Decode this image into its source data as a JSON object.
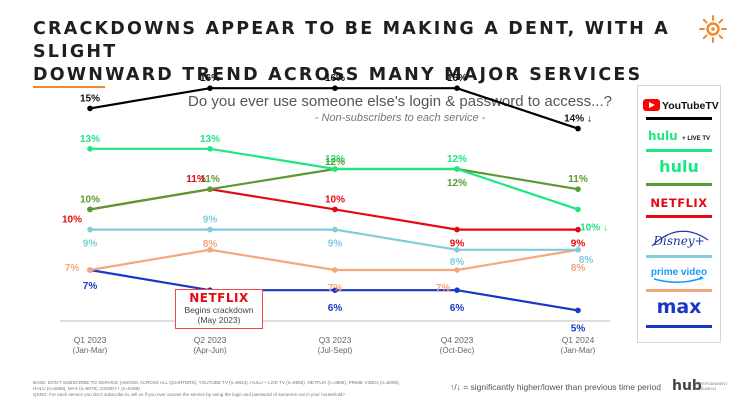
{
  "headline": {
    "line1": "CRACKDOWNS APPEAR TO BE MAKING A DENT, WITH A SLIGHT",
    "line2_part1": "DOWN",
    "line2_part2": "WARD TREND ACROSS MANY MAJOR SERVICES"
  },
  "colors": {
    "accent": "#f0892a",
    "youtubetv": "#000000",
    "hulu_live": "#1ce783",
    "hulu": "#5a9a32",
    "netflix": "#e50914",
    "disney": "#7fcdd8",
    "prime": "#f4a77a",
    "max": "#1a36c4"
  },
  "chart_data": {
    "type": "line",
    "title": "Do you ever use someone else's login & password to access...?",
    "subtitle": "- Non-subscribers to each service -",
    "categories": [
      "Q1 2023",
      "Q2 2023",
      "Q3 2023",
      "Q4 2023",
      "Q1 2024"
    ],
    "category_sublabels": [
      "(Jan-Mar)",
      "(Apr-Jun)",
      "(Jul-Sept)",
      "(Oct-Dec)",
      "(Jan-Mar)"
    ],
    "ylim": [
      0,
      18
    ],
    "grid": false,
    "legend": "right",
    "series": [
      {
        "name": "YouTubeTV",
        "key": "youtubetv",
        "values": [
          15,
          16,
          16,
          16,
          14
        ],
        "labels": [
          "15%",
          "16%",
          "16%",
          "16%",
          "14%"
        ],
        "last_marker": "↓"
      },
      {
        "name": "Hulu + Live TV",
        "key": "hulu_live",
        "values": [
          13,
          13,
          12,
          12,
          10
        ],
        "labels": [
          "13%",
          "13%",
          "12%",
          "12%",
          "10%"
        ],
        "last_marker": "↓"
      },
      {
        "name": "Hulu",
        "key": "hulu",
        "values": [
          10,
          11,
          12,
          12,
          11
        ],
        "labels": [
          "10%",
          "11%",
          "12%",
          "12%",
          "11%"
        ],
        "last_marker": ""
      },
      {
        "name": "Netflix",
        "key": "netflix",
        "values": [
          10,
          11,
          10,
          9,
          9
        ],
        "labels": [
          "10%",
          "11%",
          "10%",
          "9%",
          "9%"
        ],
        "last_marker": ""
      },
      {
        "name": "Disney+",
        "key": "disney",
        "values": [
          9,
          9,
          9,
          8,
          8
        ],
        "labels": [
          "9%",
          "9%",
          "9%",
          "8%",
          "8%"
        ],
        "last_marker": ""
      },
      {
        "name": "Prime Video",
        "key": "prime",
        "values": [
          7,
          8,
          7,
          7,
          8
        ],
        "labels": [
          "7%",
          "8%",
          "7%",
          "7%",
          "8%"
        ],
        "last_marker": ""
      },
      {
        "name": "Max",
        "key": "max",
        "values": [
          7,
          6,
          6,
          6,
          5
        ],
        "labels": [
          "7%",
          "6%",
          "6%",
          "6%",
          "5%"
        ],
        "last_marker": ""
      }
    ],
    "annotation": {
      "brand": "NETFLIX",
      "line1": "Begins crackdown",
      "line2": "(May 2023)"
    }
  },
  "legend": {
    "items": [
      {
        "key": "youtubetv",
        "label": "YouTubeTV"
      },
      {
        "key": "hulu_live",
        "label": "hulu",
        "suffix": "+ LIVE TV"
      },
      {
        "key": "hulu",
        "label": "hulu"
      },
      {
        "key": "netflix",
        "label": "NETFLIX"
      },
      {
        "key": "disney",
        "label": "Disney+"
      },
      {
        "key": "prime",
        "label": "prime video"
      },
      {
        "key": "max",
        "label": "max"
      }
    ]
  },
  "footnote": {
    "line1": "BASE: DON'T SUBSCRIBE TO SERVICE (AMONG ACROSS ALL QUARTERS): YOUTUBE TV (n=9824), HULU + LIVE TV (n=9858), NETFLIX (n=3886), PRIME VIDEO (n=5008),",
    "line2": "HULU (n=5868), MAX (n=5978), DISNEY+ (n=5498)",
    "line3": "QSNG: For each service you don't subscribe to, tell us if you ever access the service by using the login and password of someone not in your household?"
  },
  "sig_note": "↑/↓ = significantly higher/lower than previous time period",
  "hub": {
    "logo": "hub",
    "sub1": "ENTERTAINMENT",
    "sub2": "RESEARCH"
  }
}
